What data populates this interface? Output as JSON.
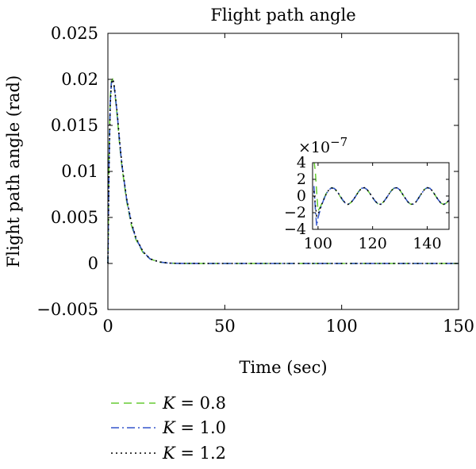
{
  "chart_data": {
    "type": "line",
    "title": "Flight path angle",
    "xlabel": "Time (sec)",
    "ylabel": "Flight path angle (rad)",
    "xlim": [
      0,
      150
    ],
    "ylim": [
      -0.005,
      0.025
    ],
    "x_ticks": [
      "0",
      "50",
      "100",
      "150"
    ],
    "x_tick_values": [
      0,
      50,
      100,
      150
    ],
    "y_ticks": [
      "0.025",
      "0.02",
      "0.015",
      "0.01",
      "0.005",
      "0",
      "−0.005"
    ],
    "y_tick_values": [
      0.025,
      0.02,
      0.015,
      0.01,
      0.005,
      0,
      -0.005
    ],
    "grid": false,
    "legend_position": "bottom-left, outside plot",
    "series": [
      {
        "name": "K = 0.8",
        "legend_symbol": "K",
        "legend_value": "= 0.8",
        "color": "#66cc33",
        "dash": "dashed",
        "x": [
          0,
          0.5,
          1,
          1.5,
          2,
          2.5,
          3,
          4,
          5,
          6,
          8,
          10,
          12,
          15,
          18,
          22,
          26,
          30,
          40,
          60,
          80,
          100,
          120,
          150
        ],
        "y": [
          0,
          0.012,
          0.018,
          0.0198,
          0.02,
          0.0195,
          0.0185,
          0.016,
          0.013,
          0.0105,
          0.0068,
          0.0042,
          0.0026,
          0.0012,
          0.0005,
          0.00015,
          4e-05,
          1e-05,
          0,
          0,
          0,
          0,
          0,
          0
        ]
      },
      {
        "name": "K = 1.0",
        "legend_symbol": "K",
        "legend_value": "= 1.0",
        "color": "#3355cc",
        "dash": "dashdot",
        "x": [
          0,
          0.5,
          1,
          1.5,
          2,
          2.5,
          3,
          4,
          5,
          6,
          8,
          10,
          12,
          15,
          18,
          22,
          26,
          30,
          40,
          60,
          80,
          100,
          120,
          150
        ],
        "y": [
          0,
          0.011,
          0.0175,
          0.0196,
          0.02,
          0.0196,
          0.0186,
          0.0162,
          0.0132,
          0.0107,
          0.007,
          0.0044,
          0.0027,
          0.0013,
          0.0005,
          0.00016,
          4e-05,
          1e-05,
          0,
          0,
          0,
          0,
          0,
          0
        ]
      },
      {
        "name": "K = 1.2",
        "legend_symbol": "K",
        "legend_value": "= 1.2",
        "color": "#000000",
        "dash": "dotted",
        "x": [
          0,
          0.5,
          1,
          1.5,
          2,
          2.5,
          3,
          4,
          5,
          6,
          8,
          10,
          12,
          15,
          18,
          22,
          26,
          30,
          40,
          60,
          80,
          100,
          120,
          150
        ],
        "y": [
          0,
          0.0105,
          0.0172,
          0.0195,
          0.02,
          0.0197,
          0.0187,
          0.0163,
          0.0133,
          0.0108,
          0.0071,
          0.0045,
          0.0028,
          0.0013,
          0.0005,
          0.00017,
          4e-05,
          1e-05,
          0,
          0,
          0,
          0,
          0,
          0
        ]
      }
    ],
    "inset": {
      "xlim": [
        98,
        148
      ],
      "ylim": [
        -4,
        4
      ],
      "y_multiplier": "×10",
      "y_multiplier_exponent": "−7",
      "x_ticks": [
        "100",
        "120",
        "140"
      ],
      "x_tick_values": [
        100,
        120,
        140
      ],
      "y_ticks": [
        "4",
        "2",
        "0",
        "−2",
        "−4"
      ],
      "y_tick_values": [
        4,
        2,
        0,
        -2,
        -4
      ],
      "series": [
        {
          "name": "K = 0.8",
          "color": "#66cc33",
          "dash": "dashed",
          "x": [
            98.5,
            99,
            99.5,
            100,
            101,
            102,
            103,
            104,
            105,
            106,
            107,
            108,
            109,
            110,
            111,
            112,
            113,
            114,
            115,
            116,
            117,
            118,
            119,
            120,
            121,
            122,
            123,
            124,
            125,
            126,
            127,
            128,
            129,
            130,
            131,
            132,
            133,
            134,
            135,
            136,
            137,
            138,
            139,
            140,
            141,
            142,
            143,
            144,
            145,
            146,
            147,
            148
          ],
          "y": [
            4.2,
            3,
            0.5,
            -1.8,
            -1.2,
            -0.4,
            0.3,
            0.8,
            1.0,
            0.9,
            0.5,
            0,
            -0.5,
            -0.9,
            -1.0,
            -0.8,
            -0.4,
            0.1,
            0.6,
            0.95,
            1.0,
            0.75,
            0.3,
            -0.2,
            -0.65,
            -0.95,
            -1.0,
            -0.7,
            -0.25,
            0.25,
            0.7,
            0.97,
            0.98,
            0.7,
            0.2,
            -0.3,
            -0.75,
            -1.0,
            -0.95,
            -0.65,
            -0.15,
            0.35,
            0.8,
            1.0,
            0.92,
            0.55,
            0.05,
            -0.45,
            -0.85,
            -1.0,
            -0.85,
            -0.45
          ]
        },
        {
          "name": "K = 1.0",
          "color": "#3355cc",
          "dash": "dashdot",
          "x": [
            98.5,
            99,
            99.5,
            100,
            101,
            102,
            103,
            104,
            105,
            106,
            107,
            108,
            109,
            110,
            111,
            112,
            113,
            114,
            115,
            116,
            117,
            118,
            119,
            120,
            121,
            122,
            123,
            124,
            125,
            126,
            127,
            128,
            129,
            130,
            131,
            132,
            133,
            134,
            135,
            136,
            137,
            138,
            139,
            140,
            141,
            142,
            143,
            144,
            145,
            146,
            147,
            148
          ],
          "y": [
            1.2,
            -1.5,
            -3.6,
            -2.6,
            -1.4,
            -0.5,
            0.25,
            0.75,
            0.98,
            0.9,
            0.55,
            0.05,
            -0.45,
            -0.85,
            -1.0,
            -0.82,
            -0.42,
            0.08,
            0.58,
            0.93,
            1.0,
            0.77,
            0.32,
            -0.18,
            -0.63,
            -0.94,
            -1.0,
            -0.72,
            -0.27,
            0.23,
            0.68,
            0.96,
            0.99,
            0.72,
            0.22,
            -0.28,
            -0.73,
            -0.99,
            -0.96,
            -0.67,
            -0.17,
            0.33,
            0.78,
            1.0,
            0.93,
            0.57,
            0.07,
            -0.43,
            -0.83,
            -1.0,
            -0.87,
            -0.47
          ]
        },
        {
          "name": "K = 1.2",
          "color": "#000000",
          "dash": "dotted",
          "x": [
            98.5,
            99,
            99.5,
            100,
            101,
            102,
            103,
            104,
            105,
            106,
            107,
            108,
            109,
            110,
            111,
            112,
            113,
            114,
            115,
            116,
            117,
            118,
            119,
            120,
            121,
            122,
            123,
            124,
            125,
            126,
            127,
            128,
            129,
            130,
            131,
            132,
            133,
            134,
            135,
            136,
            137,
            138,
            139,
            140,
            141,
            142,
            143,
            144,
            145,
            146,
            147,
            148
          ],
          "y": [
            0.6,
            -1.0,
            -2.4,
            -2.2,
            -1.3,
            -0.5,
            0.25,
            0.75,
            0.97,
            0.9,
            0.55,
            0.05,
            -0.45,
            -0.85,
            -1.0,
            -0.82,
            -0.42,
            0.08,
            0.58,
            0.93,
            1.0,
            0.77,
            0.32,
            -0.18,
            -0.63,
            -0.94,
            -1.0,
            -0.72,
            -0.27,
            0.23,
            0.68,
            0.96,
            0.99,
            0.72,
            0.22,
            -0.28,
            -0.73,
            -0.99,
            -0.96,
            -0.67,
            -0.17,
            0.33,
            0.78,
            1.0,
            0.93,
            0.57,
            0.07,
            -0.43,
            -0.83,
            -1.0,
            -0.87,
            -0.47
          ]
        }
      ]
    }
  }
}
